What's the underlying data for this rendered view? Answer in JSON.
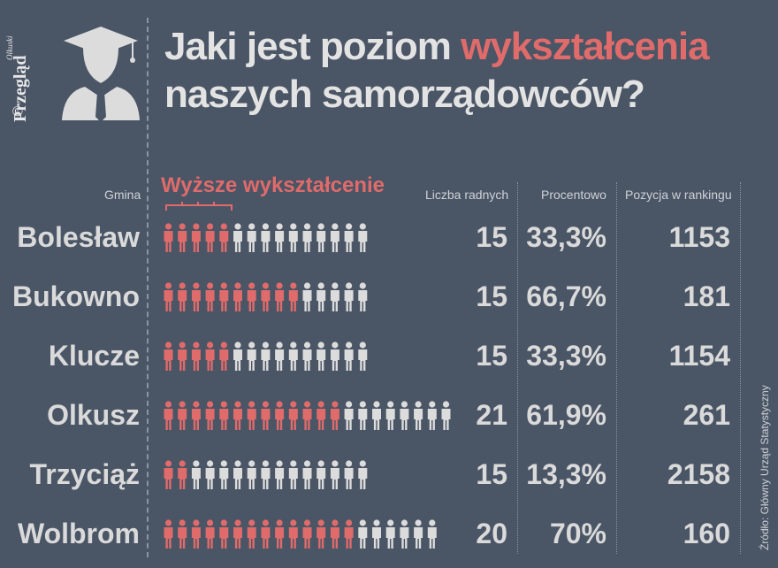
{
  "publisher": {
    "name": "Przegląd",
    "small": "Olkuski",
    "copyright": "©"
  },
  "title": {
    "line1_prefix": "Jaki jest poziom ",
    "line1_highlight": "wykształcenia",
    "line2": "naszych samorządowców?"
  },
  "headers": {
    "gmina": "Gmina",
    "higher": "Wyższe wykształcenie",
    "count": "Liczba radnych",
    "pct": "Procentowo",
    "rank": "Pozycja w rankingu"
  },
  "source": "Źródło: Główny Urząd Statystyczny",
  "colors": {
    "background": "#4a5565",
    "highlight": "#e06b6b",
    "person_grey": "#dcdcdc"
  },
  "chart_data": {
    "type": "table",
    "title": "Jaki jest poziom wykształcenia naszych samorządowców?",
    "columns": [
      "Gmina",
      "Wyższe wykształcenie",
      "Liczba radnych",
      "Procentowo",
      "Pozycja w rankingu"
    ],
    "rows": [
      {
        "gmina": "Bolesław",
        "higher": 5,
        "count": "15",
        "pct": "33,3%",
        "rank": "1153"
      },
      {
        "gmina": "Bukowno",
        "higher": 10,
        "count": "15",
        "pct": "66,7%",
        "rank": "181"
      },
      {
        "gmina": "Klucze",
        "higher": 5,
        "count": "15",
        "pct": "33,3%",
        "rank": "1154"
      },
      {
        "gmina": "Olkusz",
        "higher": 13,
        "count": "21",
        "pct": "61,9%",
        "rank": "261"
      },
      {
        "gmina": "Trzyciąż",
        "higher": 2,
        "count": "15",
        "pct": "13,3%",
        "rank": "2158"
      },
      {
        "gmina": "Wolbrom",
        "higher": 14,
        "count": "20",
        "pct": "70%",
        "rank": "160"
      }
    ]
  }
}
